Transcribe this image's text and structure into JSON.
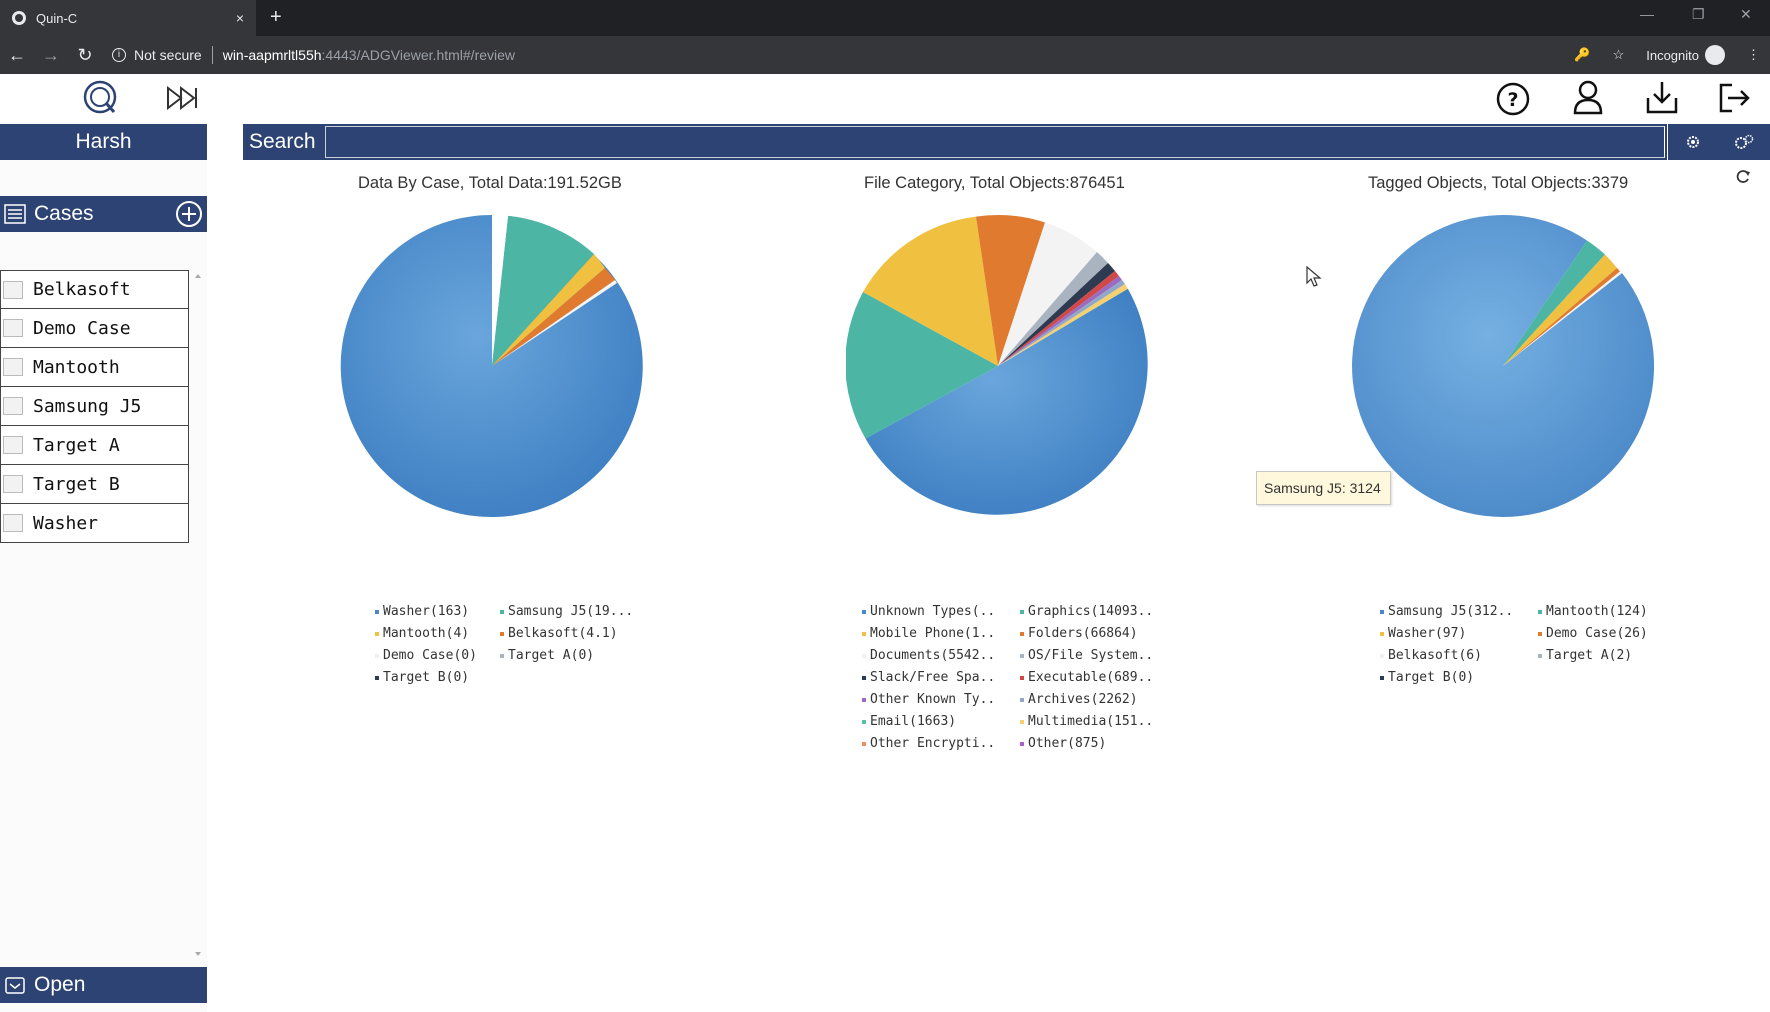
{
  "browser": {
    "tab_title": "Quin-C",
    "tab_close": "×",
    "new_tab": "+",
    "not_secure": "Not secure",
    "url_host": "win-aapmrltl55h",
    "url_rest": ":4443/ADGViewer.html#/review",
    "incognito": "Incognito"
  },
  "user": {
    "name": "Harsh"
  },
  "cases": {
    "title": "Cases",
    "items": [
      "Belkasoft",
      "Demo Case",
      "Mantooth",
      "Samsung J5",
      "Target A",
      "Target B",
      "Washer"
    ],
    "open_label": "Open"
  },
  "search": {
    "label": "Search",
    "value": ""
  },
  "charts": [
    {
      "title": "Data By Case, Total Data:191.52GB",
      "legend": [
        {
          "label": "Washer(163)",
          "color": "#4a86c8"
        },
        {
          "label": "Samsung J5(19...",
          "color": "#4cb5a4"
        },
        {
          "label": "Mantooth(4)",
          "color": "#f0c040"
        },
        {
          "label": "Belkasoft(4.1)",
          "color": "#e07a2e"
        },
        {
          "label": "Demo Case(0)",
          "color": "#f5f5f5"
        },
        {
          "label": "Target A(0)",
          "color": "#aab4c0"
        },
        {
          "label": "Target B(0)",
          "color": "#2e3a50"
        }
      ]
    },
    {
      "title": "File Category, Total Objects:876451",
      "legend": [
        {
          "label": "Unknown Types(..",
          "color": "#4a86c8"
        },
        {
          "label": "Graphics(14093..",
          "color": "#4cb5a4"
        },
        {
          "label": "Mobile Phone(1..",
          "color": "#f0c040"
        },
        {
          "label": "Folders(66864)",
          "color": "#e07a2e"
        },
        {
          "label": "Documents(5542..",
          "color": "#f5f5f5"
        },
        {
          "label": "OS/File System..",
          "color": "#aab4c0"
        },
        {
          "label": "Slack/Free Spa..",
          "color": "#2e3a50"
        },
        {
          "label": "Executable(689..",
          "color": "#d04848"
        },
        {
          "label": "Other Known Ty..",
          "color": "#9a6bc0"
        },
        {
          "label": "Archives(2262)",
          "color": "#8fa8c8"
        },
        {
          "label": "Email(1663)",
          "color": "#5cc0a8"
        },
        {
          "label": "Multimedia(151..",
          "color": "#f5d070"
        },
        {
          "label": "Other Encrypti..",
          "color": "#f09060"
        },
        {
          "label": "Other(875)",
          "color": "#b060c0"
        }
      ]
    },
    {
      "title": "Tagged Objects, Total Objects:3379",
      "legend": [
        {
          "label": "Samsung J5(312..",
          "color": "#4a86c8"
        },
        {
          "label": "Mantooth(124)",
          "color": "#4cb5a4"
        },
        {
          "label": "Washer(97)",
          "color": "#f0c040"
        },
        {
          "label": "Demo Case(26)",
          "color": "#e07a2e"
        },
        {
          "label": "Belkasoft(6)",
          "color": "#f5f5f5"
        },
        {
          "label": "Target A(2)",
          "color": "#aab4c0"
        },
        {
          "label": "Target B(0)",
          "color": "#2e3a50"
        }
      ]
    }
  ],
  "tooltip": {
    "text": "Samsung J5: 3124"
  }
}
